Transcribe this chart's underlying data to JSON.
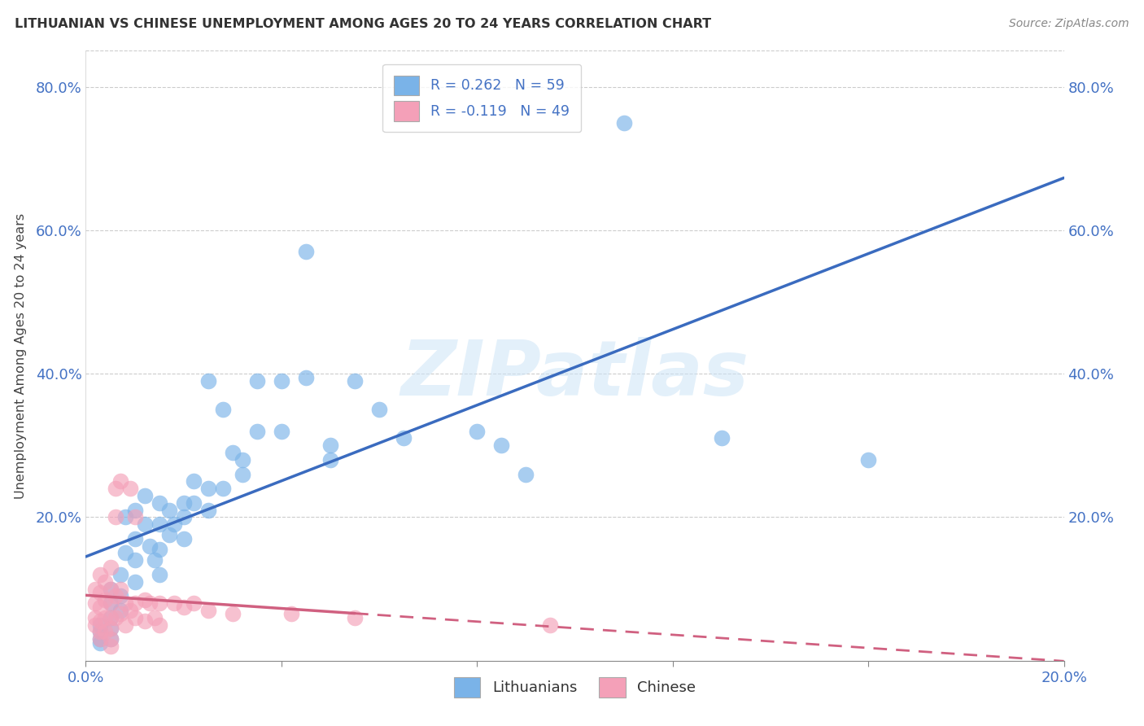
{
  "title": "LITHUANIAN VS CHINESE UNEMPLOYMENT AMONG AGES 20 TO 24 YEARS CORRELATION CHART",
  "source": "Source: ZipAtlas.com",
  "ylabel": "Unemployment Among Ages 20 to 24 years",
  "xlim": [
    0.0,
    0.2
  ],
  "ylim": [
    0.0,
    0.85
  ],
  "xticks": [
    0.0,
    0.04,
    0.08,
    0.12,
    0.16,
    0.2
  ],
  "yticks": [
    0.0,
    0.2,
    0.4,
    0.6,
    0.8
  ],
  "lit_color": "#7ab3e8",
  "chi_color": "#f4a0b8",
  "lit_line_color": "#3a6bbf",
  "chi_line_color": "#d06080",
  "watermark": "ZIPatlas",
  "lit_scatter": [
    [
      0.003,
      0.05
    ],
    [
      0.003,
      0.04
    ],
    [
      0.003,
      0.03
    ],
    [
      0.003,
      0.025
    ],
    [
      0.005,
      0.1
    ],
    [
      0.005,
      0.08
    ],
    [
      0.005,
      0.06
    ],
    [
      0.005,
      0.045
    ],
    [
      0.005,
      0.03
    ],
    [
      0.007,
      0.12
    ],
    [
      0.007,
      0.09
    ],
    [
      0.007,
      0.07
    ],
    [
      0.008,
      0.2
    ],
    [
      0.008,
      0.15
    ],
    [
      0.01,
      0.21
    ],
    [
      0.01,
      0.17
    ],
    [
      0.01,
      0.14
    ],
    [
      0.01,
      0.11
    ],
    [
      0.012,
      0.23
    ],
    [
      0.012,
      0.19
    ],
    [
      0.013,
      0.16
    ],
    [
      0.014,
      0.14
    ],
    [
      0.015,
      0.22
    ],
    [
      0.015,
      0.19
    ],
    [
      0.015,
      0.155
    ],
    [
      0.015,
      0.12
    ],
    [
      0.017,
      0.21
    ],
    [
      0.017,
      0.175
    ],
    [
      0.018,
      0.19
    ],
    [
      0.02,
      0.22
    ],
    [
      0.02,
      0.2
    ],
    [
      0.02,
      0.17
    ],
    [
      0.022,
      0.25
    ],
    [
      0.022,
      0.22
    ],
    [
      0.025,
      0.39
    ],
    [
      0.025,
      0.24
    ],
    [
      0.025,
      0.21
    ],
    [
      0.028,
      0.35
    ],
    [
      0.028,
      0.24
    ],
    [
      0.03,
      0.29
    ],
    [
      0.032,
      0.28
    ],
    [
      0.032,
      0.26
    ],
    [
      0.035,
      0.39
    ],
    [
      0.035,
      0.32
    ],
    [
      0.04,
      0.39
    ],
    [
      0.04,
      0.32
    ],
    [
      0.045,
      0.57
    ],
    [
      0.045,
      0.395
    ],
    [
      0.05,
      0.3
    ],
    [
      0.05,
      0.28
    ],
    [
      0.055,
      0.39
    ],
    [
      0.06,
      0.35
    ],
    [
      0.065,
      0.31
    ],
    [
      0.08,
      0.32
    ],
    [
      0.085,
      0.3
    ],
    [
      0.09,
      0.26
    ],
    [
      0.11,
      0.75
    ],
    [
      0.13,
      0.31
    ],
    [
      0.16,
      0.28
    ]
  ],
  "chi_scatter": [
    [
      0.002,
      0.1
    ],
    [
      0.002,
      0.08
    ],
    [
      0.002,
      0.06
    ],
    [
      0.002,
      0.05
    ],
    [
      0.003,
      0.12
    ],
    [
      0.003,
      0.095
    ],
    [
      0.003,
      0.075
    ],
    [
      0.003,
      0.055
    ],
    [
      0.003,
      0.04
    ],
    [
      0.003,
      0.03
    ],
    [
      0.004,
      0.11
    ],
    [
      0.004,
      0.085
    ],
    [
      0.004,
      0.06
    ],
    [
      0.004,
      0.04
    ],
    [
      0.005,
      0.13
    ],
    [
      0.005,
      0.1
    ],
    [
      0.005,
      0.08
    ],
    [
      0.005,
      0.06
    ],
    [
      0.005,
      0.045
    ],
    [
      0.005,
      0.03
    ],
    [
      0.005,
      0.02
    ],
    [
      0.006,
      0.24
    ],
    [
      0.006,
      0.2
    ],
    [
      0.006,
      0.09
    ],
    [
      0.006,
      0.06
    ],
    [
      0.007,
      0.25
    ],
    [
      0.007,
      0.1
    ],
    [
      0.007,
      0.065
    ],
    [
      0.008,
      0.08
    ],
    [
      0.008,
      0.05
    ],
    [
      0.009,
      0.24
    ],
    [
      0.009,
      0.07
    ],
    [
      0.01,
      0.2
    ],
    [
      0.01,
      0.08
    ],
    [
      0.01,
      0.06
    ],
    [
      0.012,
      0.085
    ],
    [
      0.012,
      0.055
    ],
    [
      0.013,
      0.08
    ],
    [
      0.014,
      0.06
    ],
    [
      0.015,
      0.08
    ],
    [
      0.015,
      0.05
    ],
    [
      0.018,
      0.08
    ],
    [
      0.02,
      0.075
    ],
    [
      0.022,
      0.08
    ],
    [
      0.025,
      0.07
    ],
    [
      0.03,
      0.065
    ],
    [
      0.042,
      0.065
    ],
    [
      0.055,
      0.06
    ],
    [
      0.095,
      0.05
    ]
  ]
}
